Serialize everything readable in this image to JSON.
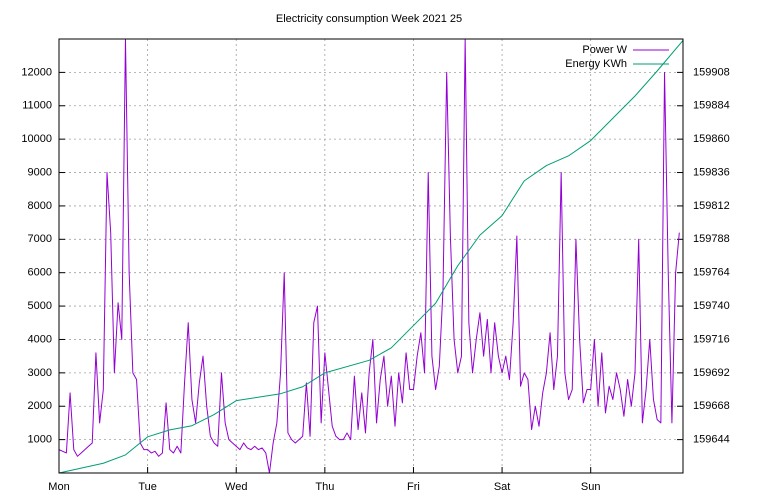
{
  "chart_data": {
    "type": "line",
    "title": "Electricity consumption Week 2021 25",
    "xlim": [
      0,
      169
    ],
    "xticks": [
      {
        "value": 0,
        "label": "Mon"
      },
      {
        "value": 24,
        "label": "Tue"
      },
      {
        "value": 48,
        "label": "Wed"
      },
      {
        "value": 72,
        "label": "Thu"
      },
      {
        "value": 96,
        "label": "Fri"
      },
      {
        "value": 120,
        "label": "Sat"
      },
      {
        "value": 144,
        "label": "Sun"
      }
    ],
    "ylim": [
      0,
      13000
    ],
    "yticks": [
      1000,
      2000,
      3000,
      4000,
      5000,
      6000,
      7000,
      8000,
      9000,
      10000,
      11000,
      12000
    ],
    "y2lim": [
      159620,
      159932
    ],
    "y2ticks": [
      159644,
      159668,
      159692,
      159716,
      159740,
      159764,
      159788,
      159812,
      159836,
      159860,
      159884,
      159908
    ],
    "grid": true,
    "legend": "top-right",
    "series": [
      {
        "name": "Power W",
        "color": "#9400d3",
        "x": [
          0,
          1,
          2,
          3,
          4,
          5,
          6,
          7,
          8,
          9,
          10,
          11,
          12,
          13,
          14,
          15,
          16,
          17,
          18,
          19,
          20,
          21,
          22,
          23,
          24,
          25,
          26,
          27,
          28,
          29,
          30,
          31,
          32,
          33,
          34,
          35,
          36,
          37,
          38,
          39,
          40,
          41,
          42,
          43,
          44,
          45,
          46,
          47,
          48,
          49,
          50,
          51,
          52,
          53,
          54,
          55,
          56,
          57,
          58,
          59,
          60,
          61,
          62,
          63,
          64,
          65,
          66,
          67,
          68,
          69,
          70,
          71,
          72,
          73,
          74,
          75,
          76,
          77,
          78,
          79,
          80,
          81,
          82,
          83,
          84,
          85,
          86,
          87,
          88,
          89,
          90,
          91,
          92,
          93,
          94,
          95,
          96,
          97,
          98,
          99,
          100,
          101,
          102,
          103,
          104,
          105,
          106,
          107,
          108,
          109,
          110,
          111,
          112,
          113,
          114,
          115,
          116,
          117,
          118,
          119,
          120,
          121,
          122,
          123,
          124,
          125,
          126,
          127,
          128,
          129,
          130,
          131,
          132,
          133,
          134,
          135,
          136,
          137,
          138,
          139,
          140,
          141,
          142,
          143,
          144,
          145,
          146,
          147,
          148,
          149,
          150,
          151,
          152,
          153,
          154,
          155,
          156,
          157,
          158,
          159,
          160,
          161,
          162,
          163,
          164,
          165,
          166,
          167,
          168
        ],
        "values": [
          700,
          650,
          600,
          2400,
          700,
          500,
          600,
          700,
          800,
          900,
          3600,
          1500,
          2500,
          9000,
          7200,
          3000,
          5100,
          4000,
          13000,
          6000,
          3000,
          2800,
          900,
          700,
          700,
          600,
          650,
          500,
          600,
          2100,
          700,
          600,
          800,
          600,
          2700,
          4500,
          2200,
          1500,
          2700,
          3500,
          2000,
          1100,
          900,
          800,
          3000,
          1500,
          1000,
          900,
          800,
          700,
          900,
          750,
          700,
          800,
          700,
          750,
          600,
          0,
          900,
          1500,
          3000,
          6000,
          1200,
          1000,
          900,
          1000,
          1100,
          2700,
          1100,
          4500,
          5000,
          1500,
          3600,
          2500,
          1400,
          1100,
          1000,
          1000,
          1200,
          1000,
          2900,
          1300,
          2400,
          1200,
          3000,
          4000,
          1500,
          2800,
          3500,
          2000,
          2900,
          1400,
          3000,
          2100,
          3600,
          2500,
          2500,
          3500,
          4200,
          3000,
          9000,
          3500,
          2500,
          3200,
          5500,
          12000,
          7100,
          4000,
          3000,
          3500,
          13000,
          4500,
          3000,
          4000,
          4800,
          3500,
          4600,
          3000,
          4500,
          3500,
          3000,
          3500,
          2800,
          4500,
          7100,
          2600,
          3000,
          2800,
          1300,
          2000,
          1400,
          2400,
          3000,
          4200,
          2500,
          3500,
          9000,
          3000,
          2200,
          2500,
          7000,
          4000,
          2100,
          2500,
          2500,
          4000,
          2000,
          3600,
          1800,
          2600,
          2200,
          3000,
          2500,
          1700,
          2800,
          2000,
          3000,
          7000,
          1500,
          2500,
          4000,
          2200,
          1600,
          1500,
          12000,
          6000,
          1500,
          6000,
          7200
        ]
      },
      {
        "name": "Energy KWh",
        "color": "#009e73",
        "axis": "y2",
        "x": [
          0,
          12,
          18,
          24,
          30,
          36,
          42,
          48,
          60,
          66,
          72,
          84,
          90,
          96,
          102,
          108,
          114,
          120,
          126,
          132,
          138,
          144,
          150,
          156,
          162,
          169
        ],
        "values": [
          159620,
          159627,
          159633,
          159646,
          159651,
          159654,
          159662,
          159672,
          159677,
          159682,
          159692,
          159701,
          159710,
          159726,
          159742,
          159769,
          159791,
          159805,
          159830,
          159841,
          159848,
          159859,
          159875,
          159891,
          159909,
          159931
        ]
      }
    ]
  }
}
